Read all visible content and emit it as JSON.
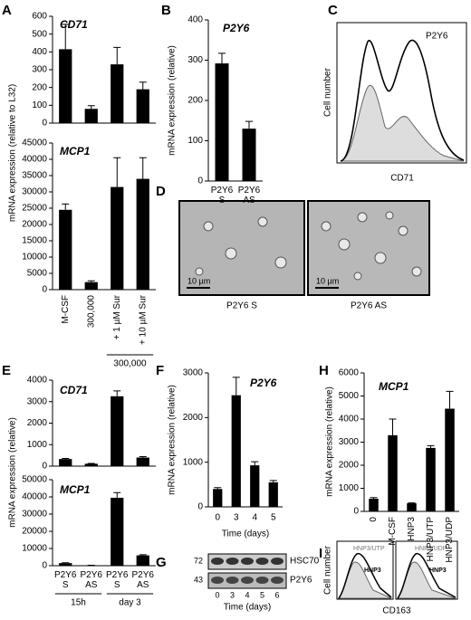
{
  "chart_data": [
    {
      "type": "bar",
      "title": "CD71",
      "values": [
        415,
        80,
        330,
        190
      ],
      "errors": [
        140,
        18,
        95,
        40
      ],
      "color": "#000000",
      "ylim": [
        0,
        600
      ],
      "yticks": [
        0,
        100,
        200,
        300,
        400,
        500,
        600
      ]
    },
    {
      "type": "bar",
      "title": "MCP1",
      "ylabel": "mRNA expression (relative to L32)",
      "categories": [
        "M-CSF",
        "300,000",
        "+ 1 µM Sur",
        "+ 10 µM Sur"
      ],
      "groups": [
        "300,000"
      ],
      "values": [
        24500,
        2300,
        31500,
        34000
      ],
      "errors": [
        1800,
        400,
        9000,
        6500
      ],
      "color": "#000000",
      "ylim": [
        0,
        45000
      ],
      "yticks": [
        0,
        5000,
        10000,
        15000,
        20000,
        25000,
        30000,
        35000,
        40000,
        45000
      ]
    },
    {
      "type": "bar",
      "title": "P2Y6",
      "ylabel": "mRNA expression (relative)",
      "categories": [
        "P2Y6 S",
        "P2Y6 AS"
      ],
      "values": [
        292,
        130
      ],
      "errors": [
        25,
        18
      ],
      "color": "#000000",
      "ylim": [
        0,
        400
      ],
      "yticks": [
        0,
        100,
        200,
        300,
        400
      ]
    },
    {
      "type": "bar",
      "title": "CD71",
      "values": [
        330,
        110,
        3250,
        400
      ],
      "errors": [
        30,
        15,
        250,
        40
      ],
      "color": "#000000",
      "ylim": [
        0,
        4000
      ],
      "yticks": [
        0,
        1000,
        2000,
        3000,
        4000
      ]
    },
    {
      "type": "bar",
      "title": "MCP1",
      "ylabel": "mRNA expression (relative)",
      "categories": [
        "P2Y6 S",
        "P2Y6 AS",
        "P2Y6 S",
        "P2Y6 AS"
      ],
      "groups": [
        "15h",
        "day 3"
      ],
      "values": [
        1500,
        200,
        39500,
        6000
      ],
      "errors": [
        200,
        50,
        3000,
        400
      ],
      "color": "#000000",
      "ylim": [
        0,
        50000
      ],
      "yticks": [
        0,
        10000,
        20000,
        30000,
        40000,
        50000
      ]
    },
    {
      "type": "bar",
      "title": "P2Y6",
      "ylabel": "mRNA expression (relative)",
      "xlabel": "Time (days)",
      "categories": [
        "0",
        "3",
        "4",
        "5"
      ],
      "values": [
        400,
        2500,
        930,
        550
      ],
      "errors": [
        30,
        400,
        80,
        40
      ],
      "color": "#000000",
      "ylim": [
        0,
        3000
      ],
      "yticks": [
        0,
        1000,
        2000,
        3000
      ]
    },
    {
      "type": "bar",
      "title": "MCP1",
      "ylabel": "mRNA expression (relative)",
      "categories": [
        "0",
        "M-CSF",
        "HNP3",
        "HNP3/UTP",
        "HNP3/UDP"
      ],
      "values": [
        550,
        3300,
        350,
        2750,
        4450
      ],
      "errors": [
        50,
        700,
        20,
        100,
        750
      ],
      "color": "#000000",
      "ylim": [
        0,
        6000
      ],
      "yticks": [
        0,
        1000,
        2000,
        3000,
        4000,
        5000,
        6000
      ]
    }
  ],
  "panel_letters": [
    "A",
    "B",
    "C",
    "D",
    "E",
    "F",
    "G",
    "H",
    "I"
  ],
  "panel_c": {
    "label": "P2Y6",
    "xlabel": "CD71",
    "ylabel": "Cell number"
  },
  "panel_d": {
    "scale_bars": [
      "10 µm",
      "10 µm"
    ],
    "captions": [
      "P2Y6 S",
      "P2Y6 AS"
    ]
  },
  "panel_g": {
    "bands": [
      {
        "mw": "72",
        "label": "HSC70"
      },
      {
        "mw": "43",
        "label": "P2Y6"
      }
    ],
    "lanes": [
      "0",
      "3",
      "4",
      "5",
      "6"
    ],
    "xlabel": "Time (days)"
  },
  "panel_i": {
    "labels": [
      "HNP3/UTP",
      "HNP3/UDP"
    ],
    "inner": [
      "HNP3",
      "HNP3"
    ],
    "xlabel": "CD163",
    "ylabel": "Cell number"
  }
}
